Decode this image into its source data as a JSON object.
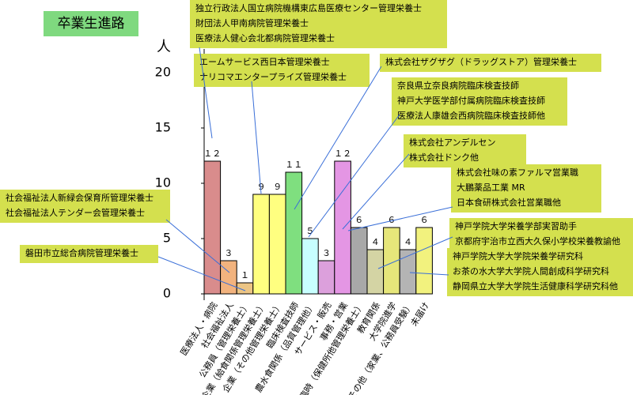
{
  "chart_data": {
    "type": "bar",
    "title": "卒業生進路",
    "ylabel": "人",
    "categories": [
      "医療法人・病院",
      "社会福祉法人",
      "公務員（管理栄養士）",
      "企業（給食関係管理栄養士）",
      "企業（その他管理栄養士）",
      "臨床検査技師",
      "農水食関係（品質管理他）",
      "サービス・販売",
      "事務・営業",
      "臨時（保健所他管理栄養士）",
      "教育関係",
      "大学院進学",
      "その他（家業、公務員受験）",
      "未届け"
    ],
    "values": [
      12,
      3,
      1,
      9,
      9,
      11,
      5,
      3,
      12,
      6,
      4,
      6,
      4,
      6
    ],
    "value_labels": [
      "１２",
      "３",
      "１",
      "９",
      "９",
      "１１",
      "５",
      "３",
      "１２",
      "６",
      "４",
      "６",
      "４",
      "６"
    ],
    "colors": [
      "#d98c8c",
      "#f2b37e",
      "#ecc585",
      "#ffff80",
      "#ffff80",
      "#7fdf7f",
      "#c8ffff",
      "#dca0dc",
      "#e496e4",
      "#a8a8a8",
      "#d4d4a4",
      "#e6e67a",
      "#b4b4b4",
      "#f2f27e"
    ],
    "ylim": [
      0,
      20
    ],
    "yticks": [
      0,
      5,
      10,
      15,
      20
    ],
    "annotations": [
      {
        "lines": [
          "独立行政法人国立病院機構東広島医療センター管理栄養士",
          "財団法人甲南病院管理栄養士",
          "医療法人健心会北都病院管理栄養士"
        ]
      },
      {
        "lines": [
          "エームサービス西日本管理栄養士",
          "ナリコマエンタープライズ管理栄養士"
        ]
      },
      {
        "lines": [
          "株式会社ザグザグ（ドラッグストア）管理栄養士"
        ]
      },
      {
        "lines": [
          "奈良県立奈良病院臨床検査技師",
          "神戸大学医学部付属病院臨床検査技師",
          "医療法人康雄会西病院臨床検査技師他"
        ]
      },
      {
        "lines": [
          "株式会社アンデルセン",
          "株式会社ドンク他"
        ]
      },
      {
        "lines": [
          "株式会社味の素ファルマ営業職",
          "大鵬薬品工業 MR",
          "日本食研株式会社営業職他"
        ]
      },
      {
        "lines": [
          "神戸学院大学栄養学部実習助手",
          "京都府宇治市立西大久保小学校栄養教諭他"
        ]
      },
      {
        "lines": [
          "神戸学院大学大学院栄養学研究科",
          "お茶の水大学大学院人間創成科学研究科",
          "静岡県立大学大学院生活健康科学研究科他"
        ]
      },
      {
        "lines": [
          "社会福祉法人新緑会保育所管理栄養士",
          "社会福祉法人テンダー会管理栄養士"
        ]
      },
      {
        "lines": [
          "磐田市立総合病院管理栄養士"
        ]
      }
    ]
  }
}
